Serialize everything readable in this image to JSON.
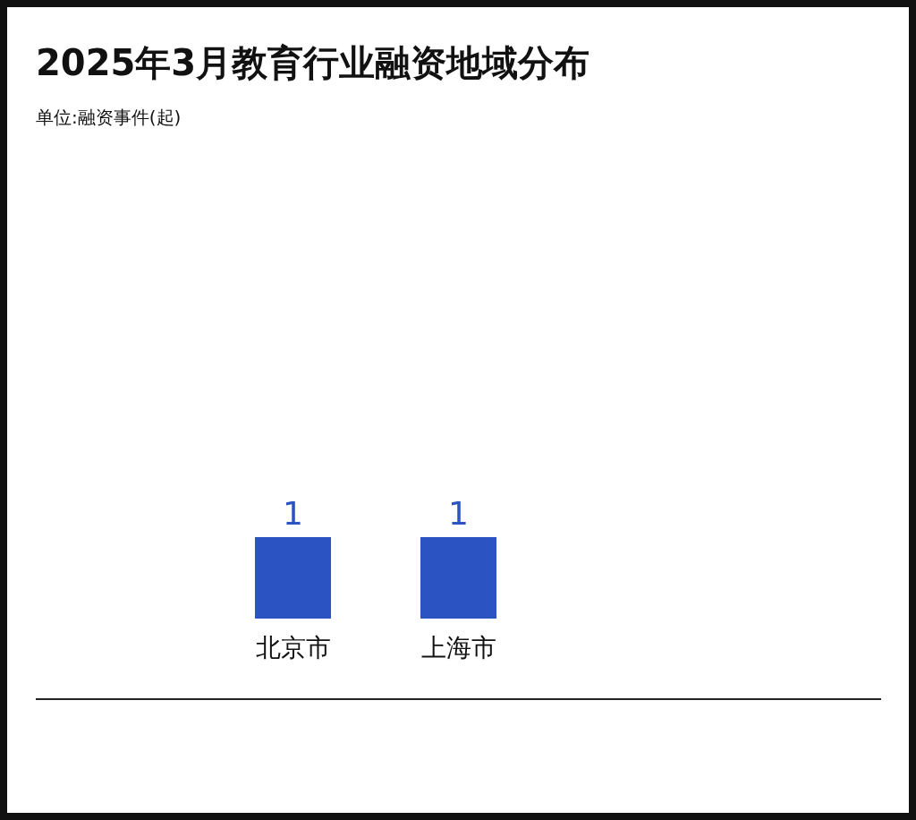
{
  "chart_data": {
    "type": "bar",
    "title": "2025年3月教育行业融资地域分布",
    "subtitle": "单位:融资事件(起)",
    "categories": [
      "北京市",
      "上海市"
    ],
    "values": [
      1,
      1
    ],
    "color": "#2b53c1",
    "data_labels": true
  }
}
